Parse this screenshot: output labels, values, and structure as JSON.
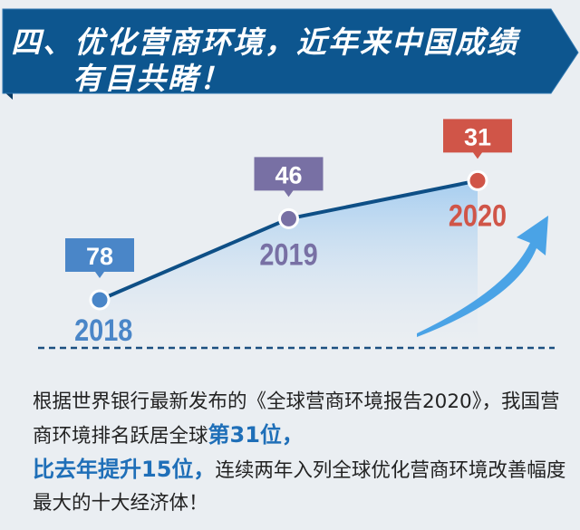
{
  "header": {
    "title_line1": "四、优化营商环境，近年来中国成绩",
    "title_line2": "有目共睹！"
  },
  "colors": {
    "banner": "#0d568f",
    "line": "#0e4f86",
    "y2018": "#4a86c8",
    "y2019": "#7870a4",
    "y2020": "#d05548",
    "arrow": "#4aa3e6"
  },
  "chart_data": {
    "type": "line",
    "categories": [
      "2018",
      "2019",
      "2020"
    ],
    "values": [
      78,
      46,
      31
    ],
    "labels": [
      "78",
      "46",
      "31"
    ],
    "title": "",
    "xlabel": "",
    "ylabel": ""
  },
  "body": {
    "p1": "根据世界银行最新发布的《全球营商环境报告2020》，我国营商环境排名跃居全球",
    "hl1": "第31位，",
    "hl2": "比去年提升15位，",
    "p2": "连续两年入列全球优化营商环境改善幅度最大的十大经济体！"
  }
}
